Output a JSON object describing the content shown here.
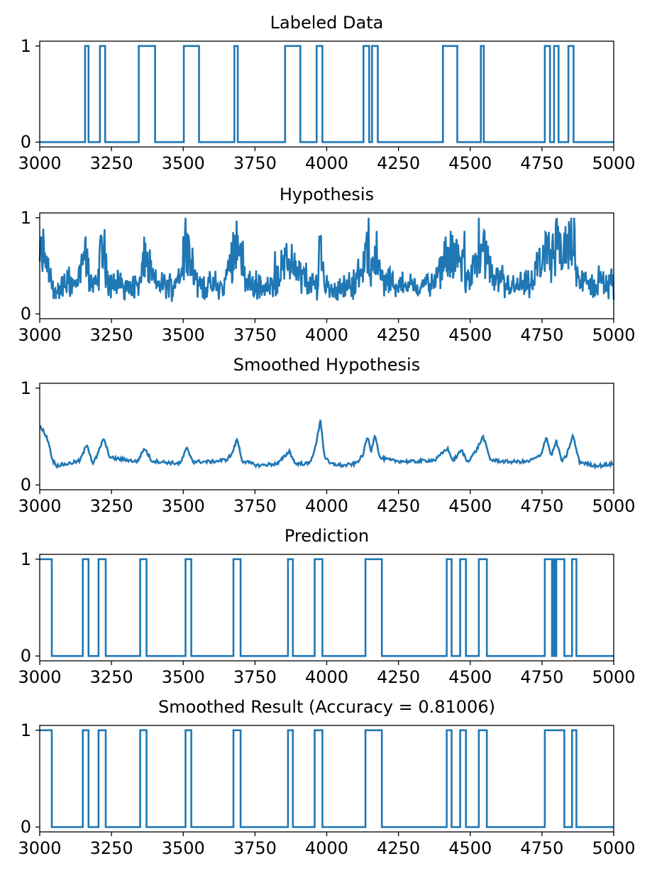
{
  "colors": {
    "line": "#1f77b4",
    "axes": "#000000",
    "background": "#ffffff"
  },
  "chart_data": [
    {
      "type": "line",
      "title": "Labeled Data",
      "xlim": [
        3000,
        5000
      ],
      "ylim": [
        -0.05,
        1.05
      ],
      "xticks": [
        3000,
        3250,
        3500,
        3750,
        4000,
        4250,
        4500,
        4750,
        5000
      ],
      "yticks": [
        0,
        1
      ],
      "grid": false,
      "step": true,
      "segments": [
        [
          3158,
          3170
        ],
        [
          3210,
          3228
        ],
        [
          3345,
          3402
        ],
        [
          3502,
          3555
        ],
        [
          3678,
          3690
        ],
        [
          3855,
          3908
        ],
        [
          3965,
          3985
        ],
        [
          4128,
          4148
        ],
        [
          4158,
          4178
        ],
        [
          4405,
          4455
        ],
        [
          4537,
          4547
        ],
        [
          4760,
          4778
        ],
        [
          4792,
          4808
        ],
        [
          4842,
          4860
        ]
      ]
    },
    {
      "type": "line",
      "title": "Hypothesis",
      "xlim": [
        3000,
        5000
      ],
      "ylim": [
        -0.05,
        1.05
      ],
      "xticks": [
        3000,
        3250,
        3500,
        3750,
        4000,
        4250,
        4500,
        4750,
        5000
      ],
      "yticks": [
        0,
        1
      ],
      "grid": false,
      "noisy": true,
      "x": [
        3000,
        3015,
        3035,
        3050,
        3090,
        3130,
        3160,
        3175,
        3200,
        3218,
        3240,
        3300,
        3350,
        3365,
        3400,
        3470,
        3512,
        3550,
        3600,
        3640,
        3688,
        3720,
        3800,
        3870,
        3940,
        3968,
        3978,
        3990,
        4020,
        4100,
        4140,
        4155,
        4168,
        4185,
        4230,
        4300,
        4380,
        4420,
        4470,
        4500,
        4540,
        4580,
        4650,
        4720,
        4760,
        4780,
        4800,
        4820,
        4855,
        4880,
        4920,
        4960,
        5000
      ],
      "y": [
        0.7,
        0.75,
        0.4,
        0.15,
        0.3,
        0.28,
        0.7,
        0.35,
        0.25,
        1.0,
        0.3,
        0.25,
        0.28,
        0.7,
        0.3,
        0.25,
        0.92,
        0.28,
        0.25,
        0.22,
        0.98,
        0.3,
        0.22,
        0.62,
        0.25,
        0.3,
        1.0,
        0.3,
        0.2,
        0.28,
        0.8,
        0.45,
        0.88,
        0.35,
        0.3,
        0.25,
        0.3,
        0.68,
        0.65,
        0.3,
        0.97,
        0.3,
        0.25,
        0.28,
        0.82,
        0.5,
        0.9,
        0.6,
        1.0,
        0.35,
        0.25,
        0.3,
        0.25
      ]
    },
    {
      "type": "line",
      "title": "Smoothed Hypothesis",
      "xlim": [
        3000,
        5000
      ],
      "ylim": [
        -0.05,
        1.05
      ],
      "xticks": [
        3000,
        3250,
        3500,
        3750,
        4000,
        4250,
        4500,
        4750,
        5000
      ],
      "yticks": [
        0,
        1
      ],
      "grid": false,
      "x": [
        3000,
        3015,
        3030,
        3045,
        3060,
        3100,
        3140,
        3165,
        3185,
        3200,
        3222,
        3245,
        3300,
        3340,
        3365,
        3390,
        3450,
        3490,
        3512,
        3535,
        3600,
        3650,
        3670,
        3688,
        3705,
        3760,
        3830,
        3870,
        3890,
        3940,
        3962,
        3978,
        3992,
        4010,
        4060,
        4100,
        4125,
        4142,
        4155,
        4168,
        4185,
        4230,
        4300,
        4380,
        4420,
        4440,
        4470,
        4490,
        4520,
        4545,
        4570,
        4620,
        4700,
        4745,
        4765,
        4782,
        4800,
        4820,
        4835,
        4858,
        4880,
        4930,
        4960,
        5000
      ],
      "y": [
        0.6,
        0.55,
        0.45,
        0.25,
        0.2,
        0.22,
        0.25,
        0.42,
        0.22,
        0.3,
        0.48,
        0.28,
        0.26,
        0.24,
        0.38,
        0.25,
        0.23,
        0.22,
        0.38,
        0.24,
        0.24,
        0.26,
        0.32,
        0.48,
        0.25,
        0.2,
        0.22,
        0.35,
        0.22,
        0.22,
        0.4,
        0.68,
        0.3,
        0.22,
        0.2,
        0.22,
        0.3,
        0.5,
        0.35,
        0.53,
        0.28,
        0.25,
        0.24,
        0.26,
        0.38,
        0.25,
        0.36,
        0.24,
        0.35,
        0.5,
        0.26,
        0.24,
        0.24,
        0.3,
        0.5,
        0.3,
        0.45,
        0.24,
        0.3,
        0.51,
        0.24,
        0.2,
        0.2,
        0.22
      ]
    },
    {
      "type": "line",
      "title": "Prediction",
      "xlim": [
        3000,
        5000
      ],
      "ylim": [
        -0.05,
        1.05
      ],
      "xticks": [
        3000,
        3250,
        3500,
        3750,
        4000,
        4250,
        4500,
        4750,
        5000
      ],
      "yticks": [
        0,
        1
      ],
      "grid": false,
      "step": true,
      "segments": [
        [
          3000,
          3042
        ],
        [
          3150,
          3170
        ],
        [
          3205,
          3230
        ],
        [
          3350,
          3372
        ],
        [
          3508,
          3528
        ],
        [
          3675,
          3700
        ],
        [
          3865,
          3882
        ],
        [
          3958,
          3985
        ],
        [
          4135,
          4192
        ],
        [
          4418,
          4435
        ],
        [
          4465,
          4485
        ],
        [
          4530,
          4558
        ],
        [
          4760,
          4785
        ],
        [
          4790,
          4795
        ],
        [
          4800,
          4828
        ],
        [
          4855,
          4870
        ]
      ]
    },
    {
      "type": "line",
      "title": "Smoothed Result (Accuracy = 0.81006)",
      "xlim": [
        3000,
        5000
      ],
      "ylim": [
        -0.05,
        1.05
      ],
      "xticks": [
        3000,
        3250,
        3500,
        3750,
        4000,
        4250,
        4500,
        4750,
        5000
      ],
      "yticks": [
        0,
        1
      ],
      "grid": false,
      "step": true,
      "segments": [
        [
          3000,
          3042
        ],
        [
          3150,
          3170
        ],
        [
          3205,
          3230
        ],
        [
          3350,
          3372
        ],
        [
          3508,
          3528
        ],
        [
          3675,
          3700
        ],
        [
          3865,
          3882
        ],
        [
          3958,
          3985
        ],
        [
          4135,
          4192
        ],
        [
          4418,
          4435
        ],
        [
          4465,
          4485
        ],
        [
          4530,
          4558
        ],
        [
          4760,
          4828
        ],
        [
          4855,
          4870
        ]
      ]
    }
  ]
}
